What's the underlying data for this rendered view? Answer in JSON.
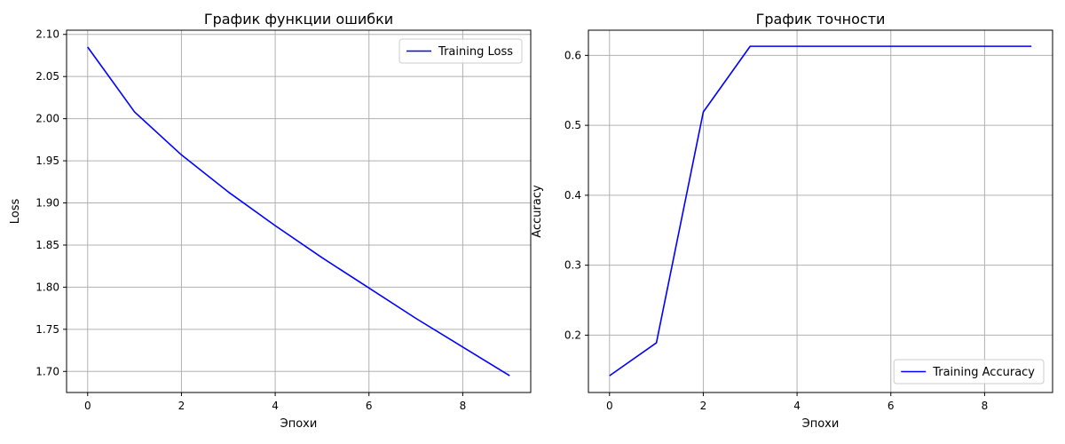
{
  "chart_data": [
    {
      "type": "line",
      "title": "График функции ошибки",
      "xlabel": "Эпохи",
      "ylabel": "Loss",
      "x": [
        0,
        1,
        2,
        3,
        4,
        5,
        6,
        7,
        8,
        9
      ],
      "xlim": [
        -0.45,
        9.45
      ],
      "ylim": [
        1.675,
        2.105
      ],
      "xticks": [
        0,
        2,
        4,
        6,
        8
      ],
      "yticks": [
        1.7,
        1.75,
        1.8,
        1.85,
        1.9,
        1.95,
        2.0,
        2.05,
        2.1
      ],
      "ytick_labels": [
        "1.70",
        "1.75",
        "1.80",
        "1.85",
        "1.90",
        "1.95",
        "2.00",
        "2.05",
        "2.10"
      ],
      "grid": true,
      "legend_position": "upper right",
      "series": [
        {
          "name": "Training Loss",
          "color": "#0000ff",
          "values": [
            2.085,
            2.008,
            1.957,
            1.913,
            1.873,
            1.835,
            1.799,
            1.763,
            1.729,
            1.695
          ]
        }
      ]
    },
    {
      "type": "line",
      "title": "График точности",
      "xlabel": "Эпохи",
      "ylabel": "Accuracy",
      "x": [
        0,
        1,
        2,
        3,
        4,
        5,
        6,
        7,
        8,
        9
      ],
      "xlim": [
        -0.45,
        9.45
      ],
      "ylim": [
        0.118,
        0.636
      ],
      "xticks": [
        0,
        2,
        4,
        6,
        8
      ],
      "yticks": [
        0.2,
        0.3,
        0.4,
        0.5,
        0.6
      ],
      "ytick_labels": [
        "0.2",
        "0.3",
        "0.4",
        "0.5",
        "0.6"
      ],
      "grid": true,
      "legend_position": "lower right",
      "series": [
        {
          "name": "Training Accuracy",
          "color": "#0000ff",
          "values": [
            0.142,
            0.189,
            0.519,
            0.613,
            0.613,
            0.613,
            0.613,
            0.613,
            0.613,
            0.613
          ]
        }
      ]
    }
  ]
}
